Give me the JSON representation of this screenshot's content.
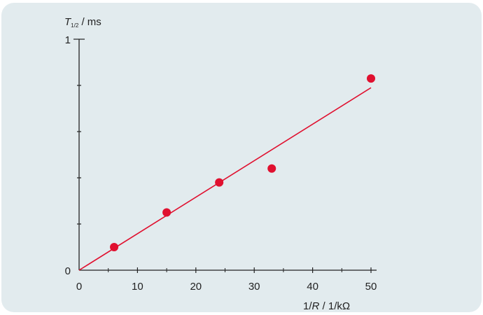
{
  "chart_data": {
    "type": "scatter",
    "title": "",
    "ylabel": {
      "symbol": "T",
      "subscript": "1/2",
      "unit": " / ms"
    },
    "xlabel": {
      "prefix": "1/",
      "symbol": "R",
      "unit": " / 1/kΩ"
    },
    "xlim": [
      0,
      50
    ],
    "ylim": [
      0,
      1
    ],
    "x_ticks": [
      0,
      10,
      20,
      30,
      40,
      50
    ],
    "x_tick_labels": [
      "0",
      "10",
      "20",
      "30",
      "40",
      "50"
    ],
    "y_ticks": [
      0,
      0.2,
      0.4,
      0.6,
      0.8,
      1
    ],
    "y_tick_labels": [
      "0",
      "",
      "",
      "",
      "",
      "1"
    ],
    "points": [
      {
        "x": 6,
        "y": 0.1
      },
      {
        "x": 15,
        "y": 0.25
      },
      {
        "x": 24,
        "y": 0.38
      },
      {
        "x": 33,
        "y": 0.44
      },
      {
        "x": 50,
        "y": 0.83
      }
    ],
    "fit_line": {
      "x": [
        0,
        50
      ],
      "y": [
        0,
        0.79
      ]
    },
    "grid": false,
    "colors": {
      "points": "#e0102f",
      "fit_line": "#e0102f",
      "axis": "#222222",
      "background": "#e2ebee"
    }
  }
}
